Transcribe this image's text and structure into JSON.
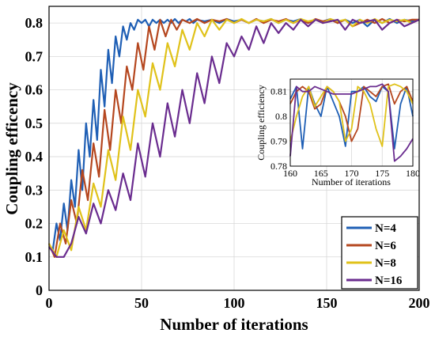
{
  "chart_data": [
    {
      "type": "line",
      "title": "",
      "xlabel": "Number of iterations",
      "ylabel": "Coupling efficency",
      "xlim": [
        0,
        200
      ],
      "ylim": [
        0,
        0.85
      ],
      "xticks": [
        "0",
        "50",
        "100",
        "150",
        "200"
      ],
      "yticks": [
        "0",
        "0.1",
        "0.2",
        "0.3",
        "0.4",
        "0.5",
        "0.6",
        "0.7",
        "0.8"
      ],
      "grid": true,
      "legend_position": "bottom-right",
      "series": [
        {
          "name": "N=4",
          "color": "#1f5fb5",
          "x": [
            0,
            2,
            4,
            6,
            8,
            10,
            12,
            14,
            16,
            18,
            20,
            22,
            24,
            26,
            28,
            30,
            32,
            34,
            36,
            38,
            40,
            42,
            44,
            46,
            48,
            50,
            52,
            54,
            56,
            58,
            60,
            62,
            64,
            66,
            68,
            70,
            72,
            74,
            76,
            78,
            80,
            84,
            88,
            92,
            96,
            100,
            104,
            108,
            112,
            116,
            120,
            124,
            128,
            132,
            136,
            140,
            144,
            148,
            152,
            156,
            160,
            164,
            168,
            172,
            176,
            180,
            184,
            188,
            192,
            196,
            200
          ],
          "values": [
            0.13,
            0.12,
            0.2,
            0.15,
            0.26,
            0.18,
            0.33,
            0.25,
            0.42,
            0.3,
            0.5,
            0.4,
            0.57,
            0.45,
            0.66,
            0.55,
            0.72,
            0.62,
            0.76,
            0.7,
            0.79,
            0.75,
            0.8,
            0.78,
            0.81,
            0.8,
            0.81,
            0.79,
            0.81,
            0.8,
            0.81,
            0.8,
            0.81,
            0.8,
            0.812,
            0.8,
            0.81,
            0.805,
            0.812,
            0.8,
            0.81,
            0.805,
            0.81,
            0.8,
            0.812,
            0.805,
            0.81,
            0.8,
            0.81,
            0.805,
            0.812,
            0.8,
            0.81,
            0.805,
            0.812,
            0.8,
            0.81,
            0.805,
            0.812,
            0.8,
            0.81,
            0.8,
            0.81,
            0.79,
            0.81,
            0.8,
            0.812,
            0.8,
            0.81,
            0.805,
            0.81
          ]
        },
        {
          "name": "N=6",
          "color": "#b5471f",
          "x": [
            0,
            3,
            6,
            9,
            12,
            15,
            18,
            21,
            24,
            27,
            30,
            33,
            36,
            39,
            42,
            45,
            48,
            51,
            54,
            57,
            60,
            63,
            66,
            69,
            72,
            76,
            80,
            84,
            88,
            92,
            96,
            100,
            104,
            108,
            112,
            116,
            120,
            124,
            128,
            132,
            136,
            140,
            144,
            148,
            152,
            156,
            160,
            164,
            168,
            172,
            176,
            180,
            184,
            188,
            192,
            196,
            200
          ],
          "values": [
            0.14,
            0.1,
            0.2,
            0.14,
            0.27,
            0.2,
            0.36,
            0.27,
            0.44,
            0.34,
            0.54,
            0.42,
            0.6,
            0.5,
            0.67,
            0.6,
            0.74,
            0.66,
            0.79,
            0.72,
            0.81,
            0.76,
            0.81,
            0.78,
            0.81,
            0.8,
            0.812,
            0.8,
            0.81,
            0.805,
            0.812,
            0.8,
            0.81,
            0.8,
            0.812,
            0.8,
            0.81,
            0.805,
            0.812,
            0.8,
            0.81,
            0.8,
            0.812,
            0.805,
            0.81,
            0.8,
            0.81,
            0.79,
            0.8,
            0.81,
            0.8,
            0.812,
            0.8,
            0.81,
            0.805,
            0.81,
            0.81
          ]
        },
        {
          "name": "N=8",
          "color": "#e0c21a",
          "x": [
            0,
            4,
            8,
            12,
            16,
            20,
            24,
            28,
            32,
            36,
            40,
            44,
            48,
            52,
            56,
            60,
            64,
            68,
            72,
            76,
            80,
            84,
            88,
            92,
            96,
            100,
            104,
            108,
            112,
            116,
            120,
            124,
            128,
            132,
            136,
            140,
            144,
            148,
            152,
            156,
            160,
            164,
            168,
            172,
            176,
            180,
            184,
            188,
            192,
            196,
            200
          ],
          "values": [
            0.14,
            0.1,
            0.18,
            0.12,
            0.25,
            0.18,
            0.32,
            0.25,
            0.42,
            0.33,
            0.52,
            0.42,
            0.6,
            0.52,
            0.68,
            0.6,
            0.74,
            0.67,
            0.78,
            0.72,
            0.8,
            0.76,
            0.81,
            0.78,
            0.81,
            0.8,
            0.812,
            0.8,
            0.81,
            0.805,
            0.812,
            0.8,
            0.81,
            0.8,
            0.812,
            0.805,
            0.81,
            0.8,
            0.812,
            0.805,
            0.81,
            0.79,
            0.81,
            0.8,
            0.812,
            0.8,
            0.81,
            0.805,
            0.81,
            0.8,
            0.81
          ]
        },
        {
          "name": "N=16",
          "color": "#6a2c8f",
          "x": [
            0,
            4,
            8,
            12,
            16,
            20,
            24,
            28,
            32,
            36,
            40,
            44,
            48,
            52,
            56,
            60,
            64,
            68,
            72,
            76,
            80,
            84,
            88,
            92,
            96,
            100,
            104,
            108,
            112,
            116,
            120,
            124,
            128,
            132,
            136,
            140,
            144,
            148,
            152,
            156,
            160,
            164,
            168,
            172,
            176,
            180,
            184,
            188,
            192,
            196,
            200
          ],
          "values": [
            0.13,
            0.1,
            0.1,
            0.14,
            0.22,
            0.17,
            0.26,
            0.2,
            0.3,
            0.24,
            0.35,
            0.27,
            0.44,
            0.34,
            0.5,
            0.4,
            0.56,
            0.46,
            0.6,
            0.5,
            0.65,
            0.56,
            0.7,
            0.62,
            0.74,
            0.7,
            0.76,
            0.72,
            0.79,
            0.74,
            0.8,
            0.77,
            0.8,
            0.78,
            0.81,
            0.79,
            0.81,
            0.8,
            0.805,
            0.81,
            0.78,
            0.81,
            0.8,
            0.805,
            0.81,
            0.78,
            0.8,
            0.81,
            0.79,
            0.8,
            0.81
          ]
        }
      ]
    },
    {
      "type": "line",
      "title": "",
      "xlabel": "Number of iterations",
      "ylabel": "Coupling efficiency",
      "xlim": [
        160,
        180
      ],
      "ylim": [
        0.78,
        0.815
      ],
      "xticks": [
        "160",
        "165",
        "170",
        "175",
        "180"
      ],
      "yticks": [
        "0.78",
        "0.79",
        "0.8",
        "0.81"
      ],
      "grid": true,
      "series": [
        {
          "name": "N=4",
          "color": "#1f5fb5",
          "x": [
            160,
            161,
            162,
            163,
            164,
            165,
            166,
            167,
            168,
            169,
            170,
            171,
            172,
            173,
            174,
            175,
            176,
            177,
            178,
            179,
            180
          ],
          "values": [
            0.807,
            0.812,
            0.787,
            0.812,
            0.805,
            0.8,
            0.812,
            0.806,
            0.8,
            0.788,
            0.81,
            0.81,
            0.812,
            0.808,
            0.806,
            0.812,
            0.81,
            0.787,
            0.805,
            0.812,
            0.8
          ]
        },
        {
          "name": "N=6",
          "color": "#b5471f",
          "x": [
            160,
            161,
            162,
            163,
            164,
            165,
            166,
            167,
            168,
            169,
            170,
            171,
            172,
            173,
            174,
            175,
            176,
            177,
            178,
            179,
            180
          ],
          "values": [
            0.805,
            0.81,
            0.812,
            0.81,
            0.803,
            0.805,
            0.812,
            0.81,
            0.806,
            0.8,
            0.79,
            0.795,
            0.812,
            0.81,
            0.808,
            0.812,
            0.813,
            0.805,
            0.81,
            0.812,
            0.806
          ]
        },
        {
          "name": "N=8",
          "color": "#e0c21a",
          "x": [
            160,
            161,
            162,
            163,
            164,
            165,
            166,
            167,
            168,
            169,
            170,
            171,
            172,
            173,
            174,
            175,
            176,
            177,
            178,
            179,
            180
          ],
          "values": [
            0.79,
            0.8,
            0.808,
            0.812,
            0.804,
            0.808,
            0.812,
            0.81,
            0.806,
            0.79,
            0.795,
            0.812,
            0.81,
            0.805,
            0.795,
            0.788,
            0.812,
            0.813,
            0.812,
            0.81,
            0.805
          ]
        },
        {
          "name": "N=16",
          "color": "#6a2c8f",
          "x": [
            160,
            161,
            162,
            163,
            164,
            165,
            166,
            167,
            168,
            169,
            170,
            171,
            172,
            173,
            174,
            175,
            176,
            177,
            178,
            179,
            180
          ],
          "values": [
            0.784,
            0.812,
            0.81,
            0.81,
            0.812,
            0.811,
            0.81,
            0.809,
            0.809,
            0.809,
            0.809,
            0.81,
            0.811,
            0.812,
            0.812,
            0.813,
            0.81,
            0.782,
            0.784,
            0.787,
            0.791
          ]
        }
      ]
    }
  ]
}
